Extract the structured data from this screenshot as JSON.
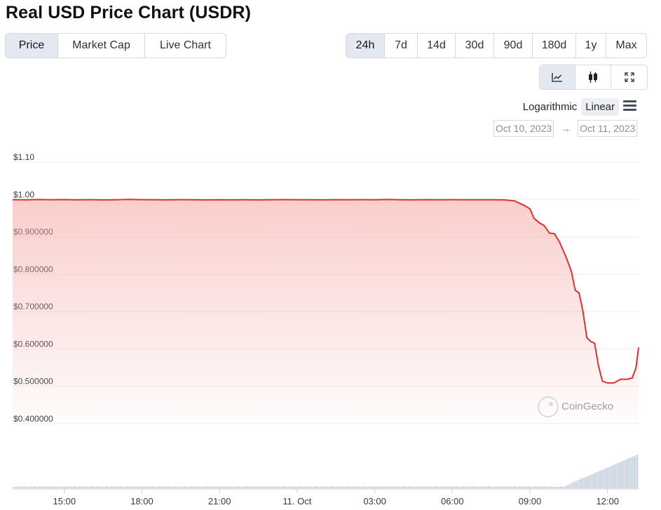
{
  "title": "Real USD Price Chart (USDR)",
  "tabs": [
    {
      "label": "Price",
      "active": true
    },
    {
      "label": "Market Cap",
      "active": false
    },
    {
      "label": "Live Chart",
      "active": false
    }
  ],
  "ranges": [
    {
      "label": "24h",
      "active": true
    },
    {
      "label": "7d",
      "active": false
    },
    {
      "label": "14d",
      "active": false
    },
    {
      "label": "30d",
      "active": false
    },
    {
      "label": "90d",
      "active": false
    },
    {
      "label": "180d",
      "active": false
    },
    {
      "label": "1y",
      "active": false
    },
    {
      "label": "Max",
      "active": false
    }
  ],
  "chart_types": [
    {
      "icon": "line-chart-icon",
      "active": true
    },
    {
      "icon": "candlestick-icon",
      "active": false
    },
    {
      "icon": "fullscreen-icon",
      "active": false
    }
  ],
  "scale": {
    "logarithmic": "Logarithmic",
    "linear": "Linear",
    "active": "Linear"
  },
  "date_range": {
    "from": "Oct 10, 2023",
    "arrow": "→",
    "to": "Oct 11, 2023"
  },
  "watermark": "CoinGecko",
  "colors": {
    "line": "#e03131",
    "fill": "#f4a6a0",
    "volume": "#c7d0dd",
    "grid": "#eceef1"
  },
  "chart_data": {
    "type": "area",
    "x_unit": "hours since 13:00 Oct 10, 2023",
    "xlim": [
      0,
      24.2
    ],
    "ylim": [
      0.4,
      1.1
    ],
    "y_ticks": [
      {
        "value": 1.1,
        "label": "$1.10"
      },
      {
        "value": 1.0,
        "label": "$1.00"
      },
      {
        "value": 0.9,
        "label": "$0.900000"
      },
      {
        "value": 0.8,
        "label": "$0.800000"
      },
      {
        "value": 0.7,
        "label": "$0.700000"
      },
      {
        "value": 0.6,
        "label": "$0.600000"
      },
      {
        "value": 0.5,
        "label": "$0.500000"
      },
      {
        "value": 0.4,
        "label": "$0.400000"
      }
    ],
    "x_ticks": [
      {
        "value": 2,
        "label": "15:00"
      },
      {
        "value": 5,
        "label": "18:00"
      },
      {
        "value": 8,
        "label": "21:00"
      },
      {
        "value": 11,
        "label": "11. Oct"
      },
      {
        "value": 14,
        "label": "03:00"
      },
      {
        "value": 17,
        "label": "06:00"
      },
      {
        "value": 20,
        "label": "09:00"
      },
      {
        "value": 23,
        "label": "12:00"
      }
    ],
    "series": [
      {
        "name": "Price",
        "points": [
          [
            0.0,
            0.9995
          ],
          [
            0.5,
            0.9988
          ],
          [
            1.0,
            0.9998
          ],
          [
            1.5,
            0.999
          ],
          [
            2.0,
            0.9996
          ],
          [
            2.5,
            0.9989
          ],
          [
            3.0,
            0.9994
          ],
          [
            3.5,
            0.9987
          ],
          [
            4.0,
            0.9993
          ],
          [
            4.5,
            0.9999
          ],
          [
            5.0,
            0.9995
          ],
          [
            5.5,
            0.9991
          ],
          [
            6.0,
            0.9988
          ],
          [
            6.5,
            0.9994
          ],
          [
            7.0,
            0.999
          ],
          [
            7.5,
            0.9987
          ],
          [
            8.0,
            0.9992
          ],
          [
            8.5,
            0.9988
          ],
          [
            9.0,
            0.9991
          ],
          [
            9.5,
            0.9986
          ],
          [
            10.0,
            0.9992
          ],
          [
            10.5,
            0.9996
          ],
          [
            11.0,
            0.999
          ],
          [
            11.5,
            0.9993
          ],
          [
            12.0,
            0.9989
          ],
          [
            12.5,
            0.9995
          ],
          [
            13.0,
            0.999
          ],
          [
            13.5,
            0.9994
          ],
          [
            14.0,
            0.9991
          ],
          [
            14.5,
            0.9997
          ],
          [
            15.0,
            0.9992
          ],
          [
            15.5,
            0.9989
          ],
          [
            16.0,
            0.9994
          ],
          [
            16.5,
            0.999
          ],
          [
            17.0,
            0.9995
          ],
          [
            17.5,
            0.9992
          ],
          [
            18.0,
            0.999
          ],
          [
            18.5,
            0.9993
          ],
          [
            19.0,
            0.9988
          ],
          [
            19.4,
            0.996
          ],
          [
            19.75,
            0.985
          ],
          [
            20.0,
            0.975
          ],
          [
            20.15,
            0.95
          ],
          [
            20.35,
            0.938
          ],
          [
            20.55,
            0.93
          ],
          [
            20.75,
            0.91
          ],
          [
            20.95,
            0.908
          ],
          [
            21.15,
            0.885
          ],
          [
            21.4,
            0.845
          ],
          [
            21.6,
            0.808
          ],
          [
            21.75,
            0.757
          ],
          [
            21.9,
            0.75
          ],
          [
            22.05,
            0.7
          ],
          [
            22.2,
            0.63
          ],
          [
            22.35,
            0.62
          ],
          [
            22.5,
            0.615
          ],
          [
            22.65,
            0.555
          ],
          [
            22.8,
            0.514
          ],
          [
            23.0,
            0.509
          ],
          [
            23.25,
            0.509
          ],
          [
            23.5,
            0.519
          ],
          [
            23.75,
            0.519
          ],
          [
            23.95,
            0.522
          ],
          [
            24.1,
            0.55
          ],
          [
            24.2,
            0.604
          ]
        ]
      }
    ],
    "volume_relative": [
      0.04,
      0.05,
      0.04,
      0.06,
      0.05,
      0.04,
      0.05,
      0.06,
      0.05,
      0.04,
      0.05,
      0.05,
      0.04,
      0.06,
      0.05,
      0.04,
      0.05,
      0.06,
      0.04,
      0.05,
      0.05,
      0.04,
      0.06,
      0.05,
      0.04,
      0.05,
      0.06,
      0.05,
      0.04,
      0.05,
      0.05,
      0.04,
      0.05,
      0.06,
      0.05,
      0.04,
      0.05,
      0.05,
      0.04,
      0.06,
      0.05,
      0.04,
      0.05,
      0.06,
      0.05,
      0.04,
      0.05,
      0.05,
      0.04,
      0.05,
      0.06,
      0.05,
      0.04,
      0.05,
      0.06,
      0.04,
      0.05,
      0.05,
      0.04,
      0.06,
      0.05,
      0.04,
      0.05,
      0.06,
      0.05,
      0.04,
      0.05,
      0.05,
      0.04,
      0.06,
      0.05,
      0.04,
      0.05,
      0.06,
      0.05,
      0.04,
      0.05,
      0.05,
      0.04,
      0.06,
      0.05,
      0.04,
      0.05,
      0.06,
      0.05,
      0.04,
      0.05,
      0.05,
      0.04,
      0.06,
      0.05,
      0.04,
      0.05,
      0.06,
      0.05,
      0.04,
      0.05,
      0.05,
      0.04,
      0.06,
      0.05,
      0.04,
      0.05,
      0.06,
      0.05,
      0.04,
      0.05,
      0.05,
      0.04,
      0.06,
      0.05,
      0.04,
      0.05,
      0.06,
      0.05,
      0.04,
      0.05,
      0.05,
      0.04,
      0.06,
      0.05,
      0.04,
      0.05,
      0.06,
      0.05,
      0.04,
      0.05,
      0.05,
      0.04,
      0.06,
      0.05,
      0.04,
      0.05,
      0.06,
      0.05,
      0.04,
      0.05,
      0.05,
      0.04,
      0.06,
      0.05,
      0.04,
      0.05,
      0.06,
      0.05,
      0.04,
      0.05,
      0.05,
      0.04,
      0.06,
      0.05,
      0.04,
      0.05,
      0.06,
      0.05,
      0.04,
      0.05,
      0.05,
      0.04,
      0.06,
      0.05,
      0.04,
      0.05,
      0.06,
      0.05,
      0.04,
      0.05,
      0.05,
      0.04,
      0.06,
      0.05,
      0.04,
      0.05,
      0.06,
      0.05,
      0.04,
      0.05,
      0.05,
      0.04,
      0.06,
      0.05,
      0.04,
      0.05,
      0.06,
      0.05,
      0.04,
      0.05,
      0.05,
      0.04,
      0.06,
      0.05,
      0.04,
      0.05,
      0.06,
      0.05,
      0.04,
      0.05,
      0.05,
      0.04,
      0.06,
      0.05,
      0.04,
      0.05,
      0.06,
      0.05,
      0.04,
      0.05,
      0.05,
      0.04,
      0.06,
      0.05,
      0.04,
      0.05,
      0.06,
      0.05,
      0.04,
      0.05,
      0.05,
      0.04,
      0.06,
      0.05,
      0.04,
      0.05,
      0.06,
      0.05,
      0.04,
      0.05,
      0.05,
      0.04,
      0.06,
      0.05,
      0.04,
      0.05,
      0.06,
      0.05,
      0.04,
      0.05,
      0.05,
      0.04,
      0.06,
      0.05,
      0.04,
      0.05,
      0.06,
      0.05,
      0.04,
      0.05,
      0.05,
      0.04,
      0.06,
      0.05,
      0.04,
      0.05,
      0.06,
      0.05,
      0.04,
      0.05,
      0.05,
      0.04,
      0.06,
      0.05,
      0.04,
      0.05,
      0.06,
      0.05,
      0.04,
      0.05,
      0.05,
      0.04,
      0.06,
      0.05,
      0.04,
      0.05,
      0.06,
      0.05,
      0.04,
      0.05,
      0.05,
      0.04,
      0.06,
      0.05,
      0.04,
      0.05,
      0.06,
      0.05,
      0.04,
      0.05,
      0.05,
      0.04,
      0.06,
      0.05,
      0.04,
      0.05,
      0.06,
      0.05,
      0.04,
      0.05,
      0.05,
      0.04,
      0.06,
      0.05,
      0.04,
      0.05,
      0.06,
      0.05,
      0.04,
      0.05,
      0.05,
      0.04,
      0.06,
      0.05,
      0.04,
      0.05,
      0.06,
      0.05,
      0.04,
      0.05,
      0.05,
      0.04,
      0.06,
      0.05,
      0.04,
      0.05,
      0.06,
      0.05,
      0.04,
      0.05,
      0.05,
      0.04,
      0.06,
      0.05,
      0.04,
      0.05,
      0.06,
      0.05,
      0.04,
      0.05,
      0.05,
      0.04,
      0.06,
      0.05,
      0.04,
      0.05,
      0.06,
      0.05,
      0.04,
      0.05,
      0.05,
      0.04,
      0.06,
      0.05,
      0.04,
      0.06,
      0.08,
      0.1,
      0.14,
      0.16,
      0.18,
      0.2,
      0.22,
      0.24,
      0.26,
      0.28,
      0.3,
      0.32,
      0.34,
      0.36,
      0.38,
      0.4,
      0.42,
      0.44,
      0.46,
      0.48,
      0.5,
      0.52,
      0.54,
      0.56,
      0.58,
      0.6,
      0.62,
      0.64,
      0.66,
      0.68,
      0.7,
      0.72,
      0.74,
      0.76,
      0.78,
      0.8,
      0.82,
      0.84,
      0.86,
      0.88,
      0.9,
      0.92,
      0.94,
      0.96,
      0.98,
      1.0
    ]
  }
}
